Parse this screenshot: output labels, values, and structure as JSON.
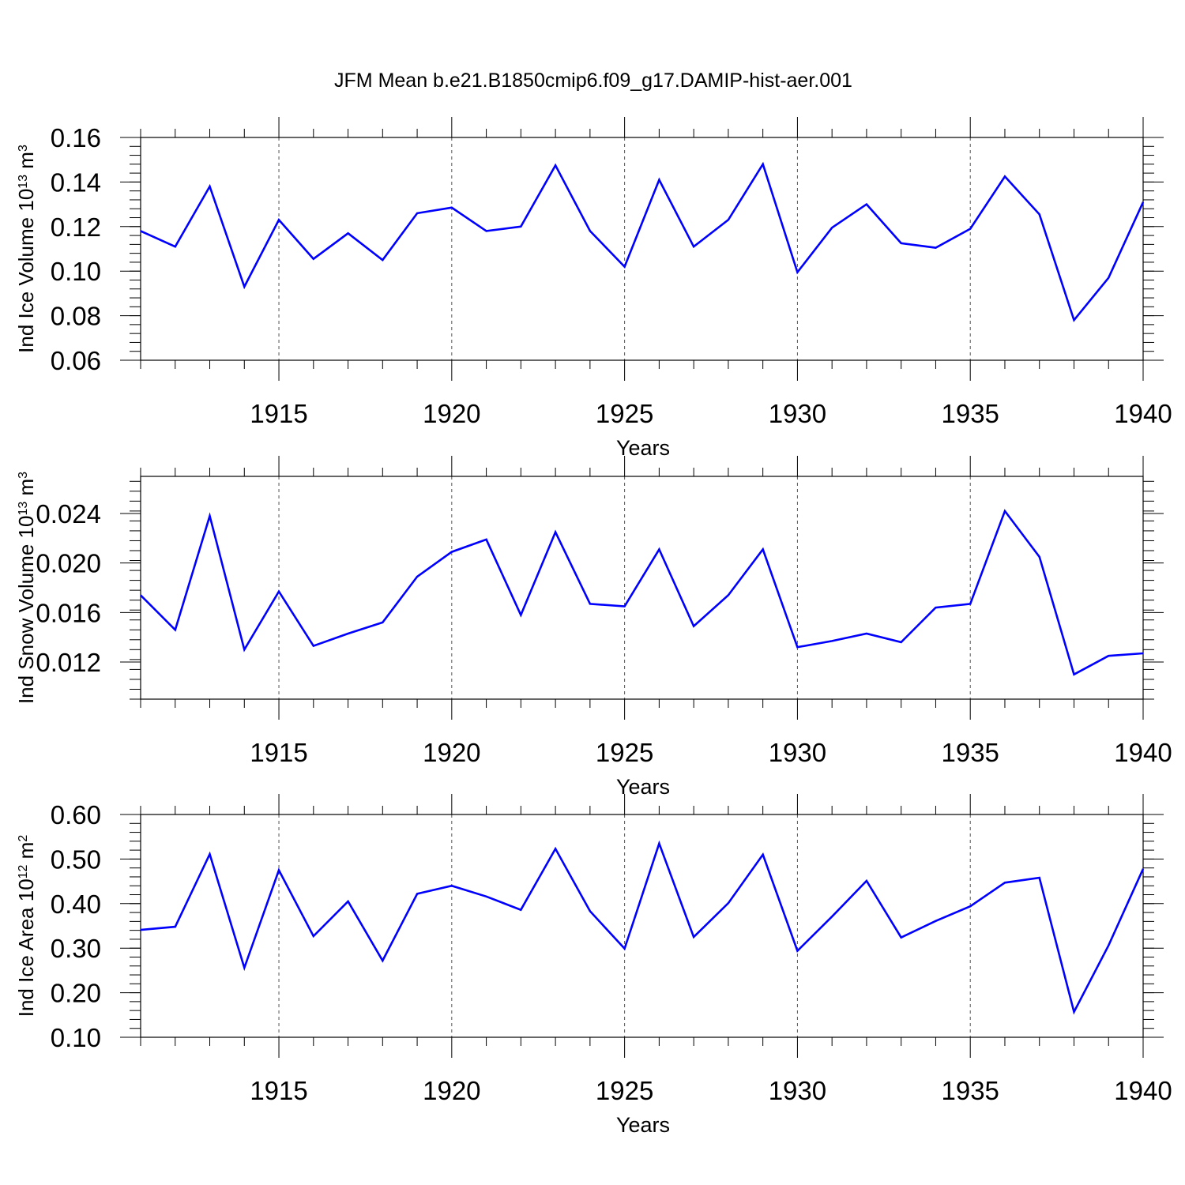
{
  "figure": {
    "title": "JFM Mean b.e21.B1850cmip6.f09_g17.DAMIP-hist-aer.001"
  },
  "chart_data": [
    {
      "type": "line",
      "title": "",
      "xlabel": "Years",
      "ylabel": {
        "base": "Ind Ice Volume 10",
        "exp": "13",
        "unit": " m",
        "unit_exp": "3"
      },
      "xlim": [
        1911,
        1940
      ],
      "ylim": [
        0.06,
        0.16
      ],
      "xticks": [
        1915,
        1920,
        1925,
        1930,
        1935,
        1940
      ],
      "yticks": [
        0.06,
        0.08,
        0.1,
        0.12,
        0.14,
        0.16
      ],
      "ytick_labels": [
        "0.06",
        "0.08",
        "0.10",
        "0.12",
        "0.14",
        "0.16"
      ],
      "vertical_dashed_grid": true,
      "line_color": "#0000ff",
      "x": [
        1911,
        1912,
        1913,
        1914,
        1915,
        1916,
        1917,
        1918,
        1919,
        1920,
        1921,
        1922,
        1923,
        1924,
        1925,
        1926,
        1927,
        1928,
        1929,
        1930,
        1931,
        1932,
        1933,
        1934,
        1935,
        1936,
        1937,
        1938,
        1939,
        1940
      ],
      "series": [
        {
          "values": [
            0.118,
            0.111,
            0.138,
            0.093,
            0.123,
            0.1055,
            0.117,
            0.105,
            0.126,
            0.1285,
            0.118,
            0.12,
            0.1475,
            0.118,
            0.102,
            0.141,
            0.111,
            0.123,
            0.148,
            0.0995,
            0.1195,
            0.13,
            0.1125,
            0.1105,
            0.119,
            0.1425,
            0.1255,
            0.078,
            0.097,
            0.131
          ]
        }
      ]
    },
    {
      "type": "line",
      "title": "",
      "xlabel": "Years",
      "ylabel": {
        "base": "Ind Snow Volume 10",
        "exp": "13",
        "unit": " m",
        "unit_exp": "3"
      },
      "xlim": [
        1911,
        1940
      ],
      "ylim": [
        0.009,
        0.027
      ],
      "xticks": [
        1915,
        1920,
        1925,
        1930,
        1935,
        1940
      ],
      "yticks": [
        0.012,
        0.016,
        0.02,
        0.024
      ],
      "ytick_labels": [
        "0.012",
        "0.016",
        "0.020",
        "0.024"
      ],
      "vertical_dashed_grid": true,
      "line_color": "#0000ff",
      "x": [
        1911,
        1912,
        1913,
        1914,
        1915,
        1916,
        1917,
        1918,
        1919,
        1920,
        1921,
        1922,
        1923,
        1924,
        1925,
        1926,
        1927,
        1928,
        1929,
        1930,
        1931,
        1932,
        1933,
        1934,
        1935,
        1936,
        1937,
        1938,
        1939,
        1940
      ],
      "series": [
        {
          "values": [
            0.0174,
            0.0146,
            0.0238,
            0.013,
            0.0177,
            0.0133,
            0.0143,
            0.0152,
            0.0189,
            0.0209,
            0.0219,
            0.0158,
            0.0225,
            0.0167,
            0.0165,
            0.0211,
            0.0149,
            0.0174,
            0.0211,
            0.0132,
            0.0137,
            0.0143,
            0.0136,
            0.0164,
            0.0167,
            0.0242,
            0.0205,
            0.011,
            0.0125,
            0.0127
          ]
        }
      ]
    },
    {
      "type": "line",
      "title": "",
      "xlabel": "Years",
      "ylabel": {
        "base": "Ind Ice Area 10",
        "exp": "12",
        "unit": " m",
        "unit_exp": "2"
      },
      "xlim": [
        1911,
        1940
      ],
      "ylim": [
        0.1,
        0.6
      ],
      "xticks": [
        1915,
        1920,
        1925,
        1930,
        1935,
        1940
      ],
      "yticks": [
        0.1,
        0.2,
        0.3,
        0.4,
        0.5,
        0.6
      ],
      "ytick_labels": [
        "0.10",
        "0.20",
        "0.30",
        "0.40",
        "0.50",
        "0.60"
      ],
      "vertical_dashed_grid": true,
      "line_color": "#0000ff",
      "x": [
        1911,
        1912,
        1913,
        1914,
        1915,
        1916,
        1917,
        1918,
        1919,
        1920,
        1921,
        1922,
        1923,
        1924,
        1925,
        1926,
        1927,
        1928,
        1929,
        1930,
        1931,
        1932,
        1933,
        1934,
        1935,
        1936,
        1937,
        1938,
        1939,
        1940
      ],
      "series": [
        {
          "values": [
            0.341,
            0.348,
            0.511,
            0.256,
            0.475,
            0.327,
            0.405,
            0.272,
            0.422,
            0.44,
            0.416,
            0.386,
            0.523,
            0.383,
            0.299,
            0.535,
            0.325,
            0.401,
            0.51,
            0.294,
            0.371,
            0.451,
            0.324,
            0.361,
            0.394,
            0.447,
            0.458,
            0.157,
            0.306,
            0.478
          ]
        }
      ]
    }
  ]
}
